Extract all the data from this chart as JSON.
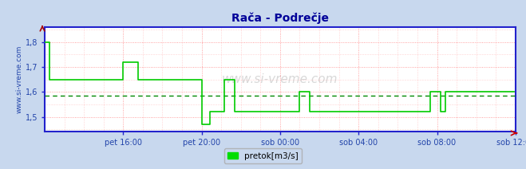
{
  "title": "Rača - Podrečje",
  "legend_label": "pretok[m3/s]",
  "legend_color": "#00dd00",
  "bg_color": "#c8d8ee",
  "plot_bg_color": "#ffffff",
  "line_color": "#00cc00",
  "grid_color": "#ff8888",
  "avg_line_color": "#008800",
  "avg_value": 1.585,
  "xlim": [
    0,
    288
  ],
  "ylim": [
    1.44,
    1.86
  ],
  "yticks": [
    1.5,
    1.6,
    1.7,
    1.8
  ],
  "ytick_labels": [
    "1,5",
    "1,6",
    "1,7",
    "1,8"
  ],
  "xtick_labels": [
    "pet 16:00",
    "pet 20:00",
    "sob 00:00",
    "sob 04:00",
    "sob 08:00",
    "sob 12:00"
  ],
  "xtick_positions": [
    48,
    96,
    144,
    192,
    240,
    288
  ],
  "title_color": "#000099",
  "axis_color": "#2222cc",
  "tick_color": "#2244aa",
  "ylabel_text": "www.si-vreme.com",
  "watermark": "www.si-vreme.com",
  "data_y": [
    1.8,
    1.8,
    1.8,
    1.65,
    1.65,
    1.65,
    1.65,
    1.65,
    1.65,
    1.65,
    1.65,
    1.65,
    1.65,
    1.65,
    1.65,
    1.65,
    1.65,
    1.65,
    1.65,
    1.65,
    1.65,
    1.65,
    1.65,
    1.65,
    1.65,
    1.65,
    1.65,
    1.65,
    1.65,
    1.65,
    1.65,
    1.65,
    1.65,
    1.65,
    1.65,
    1.65,
    1.65,
    1.65,
    1.65,
    1.65,
    1.65,
    1.65,
    1.65,
    1.65,
    1.65,
    1.65,
    1.65,
    1.65,
    1.72,
    1.72,
    1.72,
    1.72,
    1.72,
    1.72,
    1.72,
    1.72,
    1.72,
    1.65,
    1.65,
    1.65,
    1.65,
    1.65,
    1.65,
    1.65,
    1.65,
    1.65,
    1.65,
    1.65,
    1.65,
    1.65,
    1.65,
    1.65,
    1.65,
    1.65,
    1.65,
    1.65,
    1.65,
    1.65,
    1.65,
    1.65,
    1.65,
    1.65,
    1.65,
    1.65,
    1.65,
    1.65,
    1.65,
    1.65,
    1.65,
    1.65,
    1.65,
    1.65,
    1.65,
    1.65,
    1.65,
    1.65,
    1.47,
    1.47,
    1.47,
    1.47,
    1.47,
    1.52,
    1.52,
    1.52,
    1.52,
    1.52,
    1.52,
    1.52,
    1.52,
    1.52,
    1.65,
    1.65,
    1.65,
    1.65,
    1.65,
    1.65,
    1.52,
    1.52,
    1.52,
    1.52,
    1.52,
    1.52,
    1.52,
    1.52,
    1.52,
    1.52,
    1.52,
    1.52,
    1.52,
    1.52,
    1.52,
    1.52,
    1.52,
    1.52,
    1.52,
    1.52,
    1.52,
    1.52,
    1.52,
    1.52,
    1.52,
    1.52,
    1.52,
    1.52,
    1.52,
    1.52,
    1.52,
    1.52,
    1.52,
    1.52,
    1.52,
    1.52,
    1.52,
    1.52,
    1.52,
    1.52,
    1.6,
    1.6,
    1.6,
    1.6,
    1.6,
    1.6,
    1.52,
    1.52,
    1.52,
    1.52,
    1.52,
    1.52,
    1.52,
    1.52,
    1.52,
    1.52,
    1.52,
    1.52,
    1.52,
    1.52,
    1.52,
    1.52,
    1.52,
    1.52,
    1.52,
    1.52,
    1.52,
    1.52,
    1.52,
    1.52,
    1.52,
    1.52,
    1.52,
    1.52,
    1.52,
    1.52,
    1.52,
    1.52,
    1.52,
    1.52,
    1.52,
    1.52,
    1.52,
    1.52,
    1.52,
    1.52,
    1.52,
    1.52,
    1.52,
    1.52,
    1.52,
    1.52,
    1.52,
    1.52,
    1.52,
    1.52,
    1.52,
    1.52,
    1.52,
    1.52,
    1.52,
    1.52,
    1.52,
    1.52,
    1.52,
    1.52,
    1.52,
    1.52,
    1.52,
    1.52,
    1.52,
    1.52,
    1.52,
    1.52,
    1.52,
    1.52,
    1.52,
    1.52,
    1.52,
    1.52,
    1.6,
    1.6,
    1.6,
    1.6,
    1.6,
    1.6,
    1.52,
    1.52,
    1.52,
    1.6,
    1.6,
    1.6,
    1.6,
    1.6,
    1.6,
    1.6,
    1.6,
    1.6,
    1.6,
    1.6,
    1.6,
    1.6,
    1.6,
    1.6,
    1.6,
    1.6,
    1.6,
    1.6,
    1.6,
    1.6,
    1.6,
    1.6,
    1.6,
    1.6,
    1.6,
    1.6,
    1.6,
    1.6,
    1.6,
    1.6,
    1.6,
    1.6,
    1.6,
    1.6,
    1.6,
    1.6,
    1.6,
    1.6,
    1.6,
    1.6,
    1.6,
    1.6
  ]
}
